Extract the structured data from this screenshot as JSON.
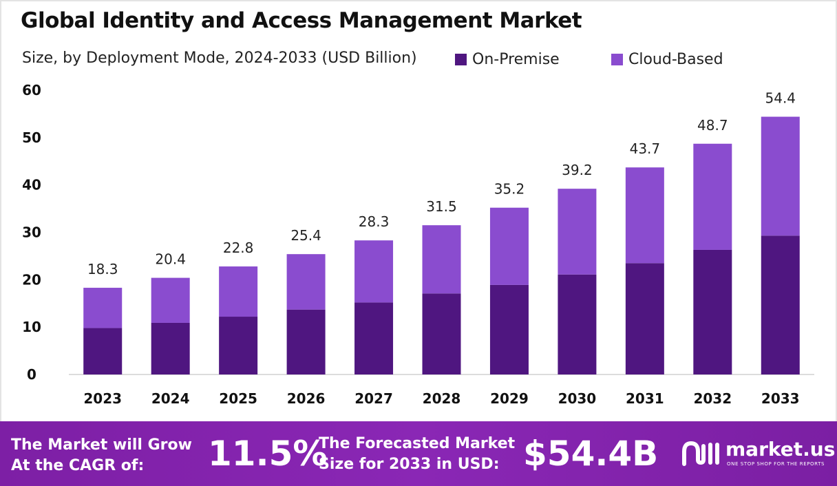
{
  "header": {
    "title": "Global Identity and Access Management Market",
    "subtitle": "Size, by Deployment Mode, 2024-2033 (USD Billion)"
  },
  "legend": {
    "on_premise": "On-Premise",
    "cloud_based": "Cloud-Based"
  },
  "colors": {
    "on_premise": "#4f1680",
    "cloud_based": "#8a4ccf",
    "footer_bg": "#7d1fa5"
  },
  "chart_data": {
    "type": "bar",
    "stacked": true,
    "categories": [
      "2023",
      "2024",
      "2025",
      "2026",
      "2027",
      "2028",
      "2029",
      "2030",
      "2031",
      "2032",
      "2033"
    ],
    "series": [
      {
        "name": "On-Premise",
        "values": [
          9.8,
          10.9,
          12.2,
          13.7,
          15.2,
          17.1,
          18.9,
          21.1,
          23.5,
          26.3,
          29.3
        ]
      },
      {
        "name": "Cloud-Based",
        "values": [
          8.5,
          9.5,
          10.6,
          11.7,
          13.1,
          14.4,
          16.3,
          18.1,
          20.2,
          22.4,
          25.1
        ]
      }
    ],
    "totals": [
      "18.3",
      "20.4",
      "22.8",
      "25.4",
      "28.3",
      "31.5",
      "35.2",
      "39.2",
      "43.7",
      "48.7",
      "54.4"
    ],
    "yticks": [
      "0",
      "10",
      "20",
      "30",
      "40",
      "50",
      "60"
    ],
    "ylim": [
      0,
      60
    ],
    "grid": false,
    "legend_position": "top-right"
  },
  "footer": {
    "cagr_label_line1": "The Market will Grow",
    "cagr_label_line2": "At the CAGR of:",
    "cagr_value": "11.5%",
    "forecast_label_line1": "The Forecasted Market",
    "forecast_label_line2": "Size for 2033 in USD:",
    "forecast_value": "$54.4B",
    "brand_name": "market.us",
    "brand_tagline": "ONE STOP SHOP FOR THE REPORTS",
    "brand_icon": "market-us-logo-icon"
  }
}
